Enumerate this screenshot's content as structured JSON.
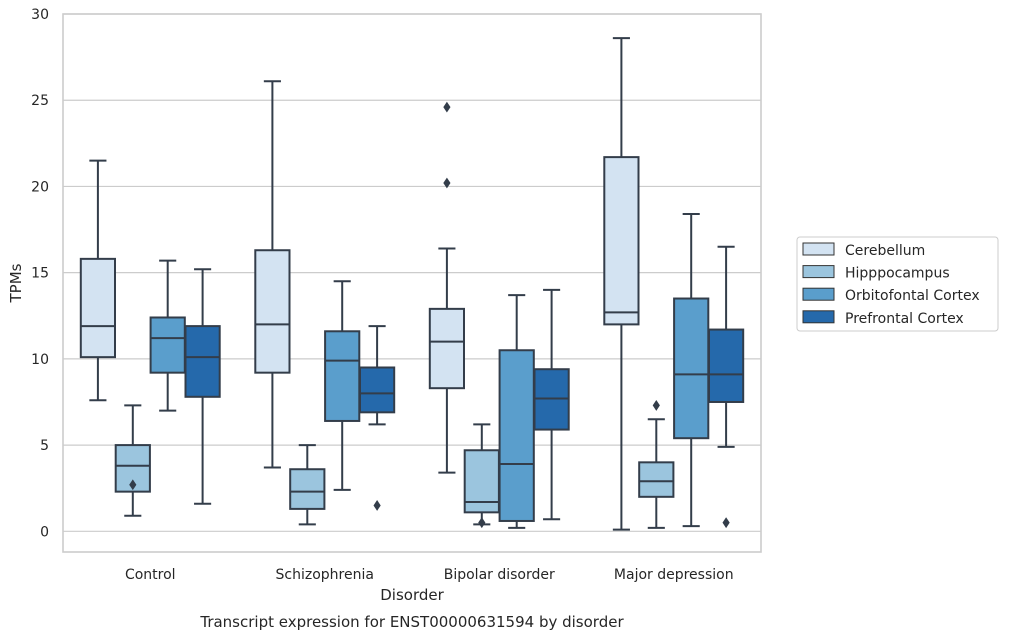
{
  "caption": "Transcript expression for ENST00000631594 by disorder",
  "chart_data": {
    "type": "box",
    "xlabel": "Disorder",
    "ylabel": "TPMs",
    "ylim": [
      -1.2,
      30
    ],
    "yticks": [
      0,
      5,
      10,
      15,
      20,
      25,
      30
    ],
    "categories": [
      "Control",
      "Schizophrenia",
      "Bipolar disorder",
      "Major depression"
    ],
    "grid": true,
    "legend_position": "right",
    "series": [
      {
        "name": "Cerebellum",
        "color": "#d3e3f2",
        "boxes": [
          {
            "whislo": 7.6,
            "q1": 10.1,
            "med": 11.9,
            "q3": 15.8,
            "whishi": 21.5,
            "fliers": []
          },
          {
            "whislo": 3.7,
            "q1": 9.2,
            "med": 12.0,
            "q3": 16.3,
            "whishi": 26.1,
            "fliers": []
          },
          {
            "whislo": 3.4,
            "q1": 8.3,
            "med": 11.0,
            "q3": 12.9,
            "whishi": 16.4,
            "fliers": [
              20.2,
              24.6
            ]
          },
          {
            "whislo": 0.1,
            "q1": 12.0,
            "med": 12.7,
            "q3": 21.7,
            "whishi": 28.6,
            "fliers": []
          }
        ]
      },
      {
        "name": "Hipppocampus",
        "color": "#9bc5de",
        "boxes": [
          {
            "whislo": 0.9,
            "q1": 2.3,
            "med": 3.8,
            "q3": 5.0,
            "whishi": 7.3,
            "fliers": [
              2.7
            ]
          },
          {
            "whislo": 0.4,
            "q1": 1.3,
            "med": 2.3,
            "q3": 3.6,
            "whishi": 5.0,
            "fliers": []
          },
          {
            "whislo": 0.4,
            "q1": 1.1,
            "med": 1.7,
            "q3": 4.7,
            "whishi": 6.2,
            "fliers": [
              0.5
            ]
          },
          {
            "whislo": 0.2,
            "q1": 2.0,
            "med": 2.9,
            "q3": 4.0,
            "whishi": 6.5,
            "fliers": [
              7.3
            ]
          }
        ]
      },
      {
        "name": "Orbitofontal Cortex",
        "color": "#5a9ecc",
        "boxes": [
          {
            "whislo": 7.0,
            "q1": 9.2,
            "med": 11.2,
            "q3": 12.4,
            "whishi": 15.7,
            "fliers": []
          },
          {
            "whislo": 2.4,
            "q1": 6.4,
            "med": 9.9,
            "q3": 11.6,
            "whishi": 14.5,
            "fliers": []
          },
          {
            "whislo": 0.2,
            "q1": 0.6,
            "med": 3.9,
            "q3": 10.5,
            "whishi": 13.7,
            "fliers": []
          },
          {
            "whislo": 0.3,
            "q1": 5.4,
            "med": 9.1,
            "q3": 13.5,
            "whishi": 18.4,
            "fliers": []
          }
        ]
      },
      {
        "name": "Prefrontal Cortex",
        "color": "#2569ab",
        "boxes": [
          {
            "whislo": 1.6,
            "q1": 7.8,
            "med": 10.1,
            "q3": 11.9,
            "whishi": 15.2,
            "fliers": []
          },
          {
            "whislo": 6.2,
            "q1": 6.9,
            "med": 8.0,
            "q3": 9.5,
            "whishi": 11.9,
            "fliers": [
              1.5
            ]
          },
          {
            "whislo": 0.7,
            "q1": 5.9,
            "med": 7.7,
            "q3": 9.4,
            "whishi": 14.0,
            "fliers": []
          },
          {
            "whislo": 4.9,
            "q1": 7.5,
            "med": 9.1,
            "q3": 11.7,
            "whishi": 16.5,
            "fliers": [
              0.5
            ]
          }
        ]
      }
    ]
  }
}
